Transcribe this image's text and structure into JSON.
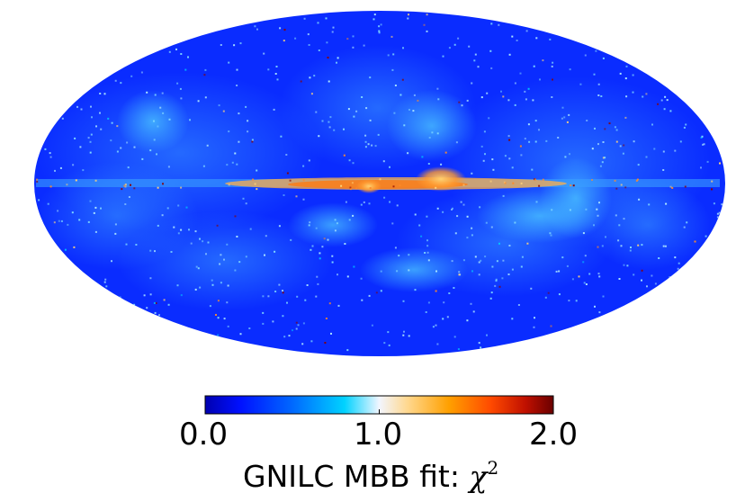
{
  "map": {
    "projection": "Mollweide",
    "colormap": [
      "#00008b",
      "#0000ff",
      "#0060ff",
      "#00c8ff",
      "#ffffff",
      "#ffc040",
      "#ff8c00",
      "#ff3000",
      "#8b0000"
    ],
    "background_color": "#0026ff"
  },
  "colorbar": {
    "min_label": "0.0",
    "mid_label": "1.0",
    "max_label": "2.0",
    "title_text": "GNILC MBB fit: ",
    "title_symbol": "χ",
    "title_exponent": "2",
    "range": [
      0.0,
      2.0
    ]
  }
}
